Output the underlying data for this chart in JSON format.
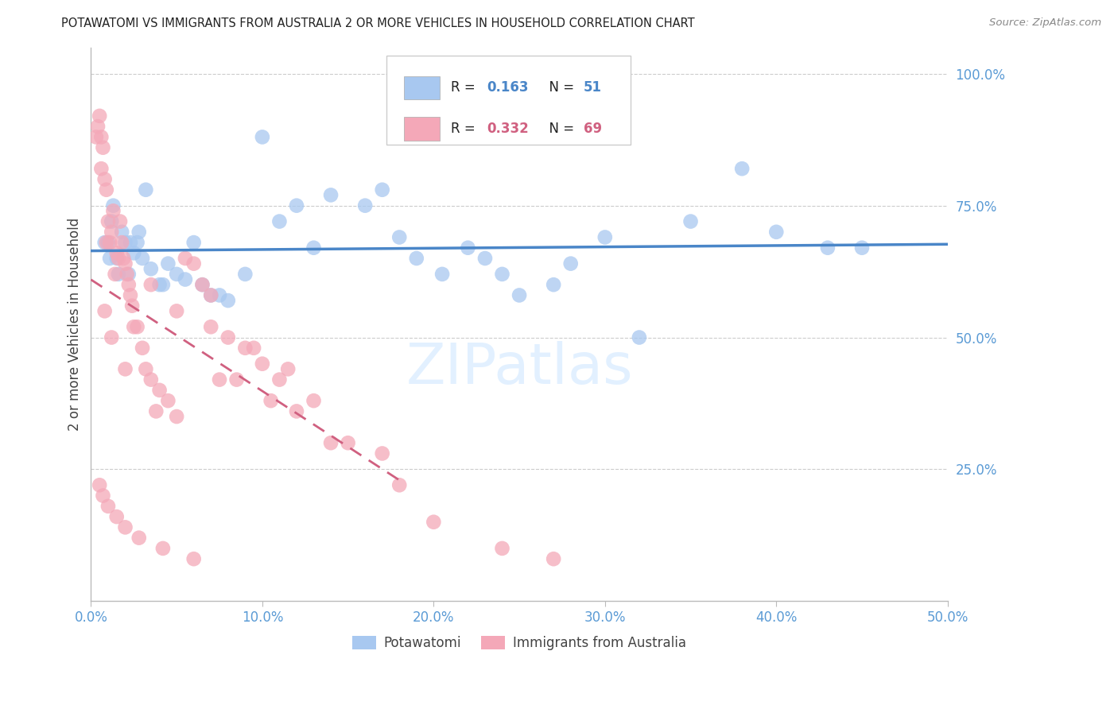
{
  "title": "POTAWATOMI VS IMMIGRANTS FROM AUSTRALIA 2 OR MORE VEHICLES IN HOUSEHOLD CORRELATION CHART",
  "source": "Source: ZipAtlas.com",
  "ylabel": "2 or more Vehicles in Household",
  "x_tick_labels": [
    "0.0%",
    "10.0%",
    "20.0%",
    "30.0%",
    "40.0%",
    "50.0%"
  ],
  "x_tick_vals": [
    0.0,
    10.0,
    20.0,
    30.0,
    40.0,
    50.0
  ],
  "y_tick_labels": [
    "25.0%",
    "50.0%",
    "75.0%",
    "100.0%"
  ],
  "y_tick_vals": [
    25.0,
    50.0,
    75.0,
    100.0
  ],
  "xlim": [
    0.0,
    50.0
  ],
  "ylim": [
    0.0,
    105.0
  ],
  "legend_label1": "Potawatomi",
  "legend_label2": "Immigrants from Australia",
  "R1": "0.163",
  "N1": "51",
  "R2": "0.332",
  "N2": "69",
  "color_blue": "#a8c8f0",
  "color_pink": "#f4a8b8",
  "color_blue_line": "#4a86c8",
  "color_pink_line": "#d06080",
  "color_axis_labels": "#5b9bd5",
  "background_color": "#ffffff",
  "grid_color": "#cccccc",
  "blue_x": [
    1.0,
    1.2,
    1.5,
    1.8,
    2.0,
    2.2,
    2.5,
    2.8,
    3.0,
    3.5,
    4.0,
    4.5,
    5.0,
    5.5,
    6.0,
    6.5,
    7.0,
    8.0,
    9.0,
    10.0,
    11.0,
    13.0,
    14.0,
    17.0,
    18.0,
    19.0,
    20.5,
    22.0,
    24.0,
    25.0,
    27.0,
    28.0,
    30.0,
    35.0,
    38.0,
    40.0,
    43.0,
    45.0,
    1.3,
    1.6,
    2.3,
    3.2,
    0.8,
    1.1,
    2.7,
    4.2,
    7.5,
    12.0,
    16.0,
    23.0,
    32.0
  ],
  "blue_y": [
    68.0,
    72.0,
    65.0,
    70.0,
    68.0,
    62.0,
    66.0,
    70.0,
    65.0,
    63.0,
    60.0,
    64.0,
    62.0,
    61.0,
    68.0,
    60.0,
    58.0,
    57.0,
    62.0,
    88.0,
    72.0,
    67.0,
    77.0,
    78.0,
    69.0,
    65.0,
    62.0,
    67.0,
    62.0,
    58.0,
    60.0,
    64.0,
    69.0,
    72.0,
    82.0,
    70.0,
    67.0,
    67.0,
    75.0,
    62.0,
    68.0,
    78.0,
    68.0,
    65.0,
    68.0,
    60.0,
    58.0,
    75.0,
    75.0,
    65.0,
    50.0
  ],
  "pink_x": [
    0.3,
    0.5,
    0.6,
    0.7,
    0.8,
    0.9,
    1.0,
    1.1,
    1.2,
    1.3,
    1.5,
    1.6,
    1.7,
    1.8,
    1.9,
    2.0,
    2.1,
    2.2,
    2.3,
    2.5,
    2.7,
    3.0,
    3.2,
    3.5,
    4.0,
    4.5,
    5.0,
    5.5,
    6.0,
    6.5,
    7.0,
    8.0,
    9.0,
    10.0,
    11.0,
    13.0,
    15.0,
    17.0,
    0.4,
    0.6,
    0.9,
    1.4,
    2.4,
    3.8,
    7.5,
    12.0,
    0.5,
    0.7,
    1.0,
    1.5,
    2.0,
    2.8,
    4.2,
    6.0,
    8.5,
    10.5,
    14.0,
    18.0,
    20.0,
    24.0,
    27.0,
    0.8,
    1.2,
    2.0,
    3.5,
    5.0,
    7.0,
    9.5,
    11.5
  ],
  "pink_y": [
    88.0,
    92.0,
    88.0,
    86.0,
    80.0,
    78.0,
    72.0,
    68.0,
    70.0,
    74.0,
    66.0,
    65.0,
    72.0,
    68.0,
    65.0,
    64.0,
    62.0,
    60.0,
    58.0,
    52.0,
    52.0,
    48.0,
    44.0,
    42.0,
    40.0,
    38.0,
    35.0,
    65.0,
    64.0,
    60.0,
    58.0,
    50.0,
    48.0,
    45.0,
    42.0,
    38.0,
    30.0,
    28.0,
    90.0,
    82.0,
    68.0,
    62.0,
    56.0,
    36.0,
    42.0,
    36.0,
    22.0,
    20.0,
    18.0,
    16.0,
    14.0,
    12.0,
    10.0,
    8.0,
    42.0,
    38.0,
    30.0,
    22.0,
    15.0,
    10.0,
    8.0,
    55.0,
    50.0,
    44.0,
    60.0,
    55.0,
    52.0,
    48.0,
    44.0
  ]
}
